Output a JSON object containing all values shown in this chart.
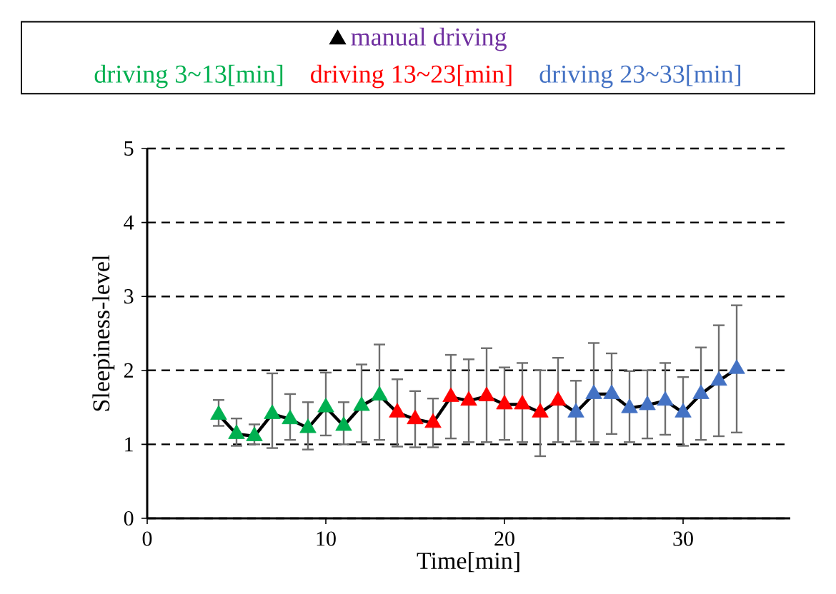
{
  "chart_data": {
    "type": "line",
    "xlabel": "Time[min]",
    "ylabel": "Sleepiness-level",
    "xlim": [
      0,
      36
    ],
    "ylim": [
      0,
      5
    ],
    "xticks": [
      0,
      10,
      20,
      30
    ],
    "yticks": [
      0,
      1,
      2,
      3,
      4,
      5
    ],
    "grid": "y",
    "legend": "top",
    "marker": "triangle",
    "series": [
      {
        "name": "manual driving",
        "marker": "none",
        "color": "#000000",
        "x": [
          4,
          5,
          6,
          7,
          8,
          9,
          10,
          11,
          12,
          13,
          14,
          15,
          16,
          17,
          18,
          19,
          20,
          21,
          22,
          23,
          24,
          25,
          26,
          27,
          28,
          29,
          30,
          31,
          32,
          33
        ],
        "values": [
          1.4,
          1.14,
          1.11,
          1.41,
          1.34,
          1.22,
          1.5,
          1.25,
          1.52,
          1.66,
          1.43,
          1.34,
          1.29,
          1.64,
          1.59,
          1.65,
          1.54,
          1.54,
          1.43,
          1.59,
          1.43,
          1.68,
          1.68,
          1.49,
          1.53,
          1.59,
          1.43,
          1.68,
          1.86,
          2.02
        ]
      },
      {
        "name": "driving 3~13[min]",
        "type": "scatter",
        "color": "#00b050",
        "x": [
          4,
          5,
          6,
          7,
          8,
          9,
          10,
          11,
          12,
          13
        ],
        "values": [
          1.4,
          1.14,
          1.11,
          1.41,
          1.34,
          1.22,
          1.5,
          1.25,
          1.52,
          1.66
        ],
        "errors": [
          [
            1.25,
            1.6
          ],
          [
            0.98,
            1.35
          ],
          [
            1.0,
            1.27
          ],
          [
            0.95,
            1.96
          ],
          [
            1.06,
            1.68
          ],
          [
            0.93,
            1.57
          ],
          [
            1.12,
            1.97
          ],
          [
            1.0,
            1.57
          ],
          [
            1.03,
            2.08
          ],
          [
            1.06,
            2.35
          ]
        ]
      },
      {
        "name": "driving 13~23[min]",
        "type": "scatter",
        "color": "#ff0000",
        "x": [
          14,
          15,
          16,
          17,
          18,
          19,
          20,
          21,
          22,
          23
        ],
        "values": [
          1.43,
          1.34,
          1.29,
          1.64,
          1.59,
          1.65,
          1.54,
          1.54,
          1.43,
          1.59
        ],
        "errors": [
          [
            0.97,
            1.88
          ],
          [
            0.96,
            1.72
          ],
          [
            0.96,
            1.62
          ],
          [
            1.08,
            2.21
          ],
          [
            1.03,
            2.15
          ],
          [
            1.03,
            2.3
          ],
          [
            1.06,
            2.04
          ],
          [
            1.03,
            2.1
          ],
          [
            0.84,
            2.0
          ],
          [
            1.03,
            2.17
          ]
        ]
      },
      {
        "name": "driving 23~33[min]",
        "type": "scatter",
        "color": "#4472c4",
        "x": [
          24,
          25,
          26,
          27,
          28,
          29,
          30,
          31,
          32,
          33
        ],
        "values": [
          1.43,
          1.68,
          1.68,
          1.49,
          1.53,
          1.59,
          1.43,
          1.68,
          1.86,
          2.02
        ],
        "errors": [
          [
            1.04,
            1.86
          ],
          [
            1.03,
            2.37
          ],
          [
            1.14,
            2.23
          ],
          [
            1.03,
            1.99
          ],
          [
            1.08,
            2.0
          ],
          [
            1.13,
            2.1
          ],
          [
            0.98,
            1.91
          ],
          [
            1.06,
            2.31
          ],
          [
            1.11,
            2.61
          ],
          [
            1.16,
            2.88
          ]
        ]
      }
    ]
  }
}
